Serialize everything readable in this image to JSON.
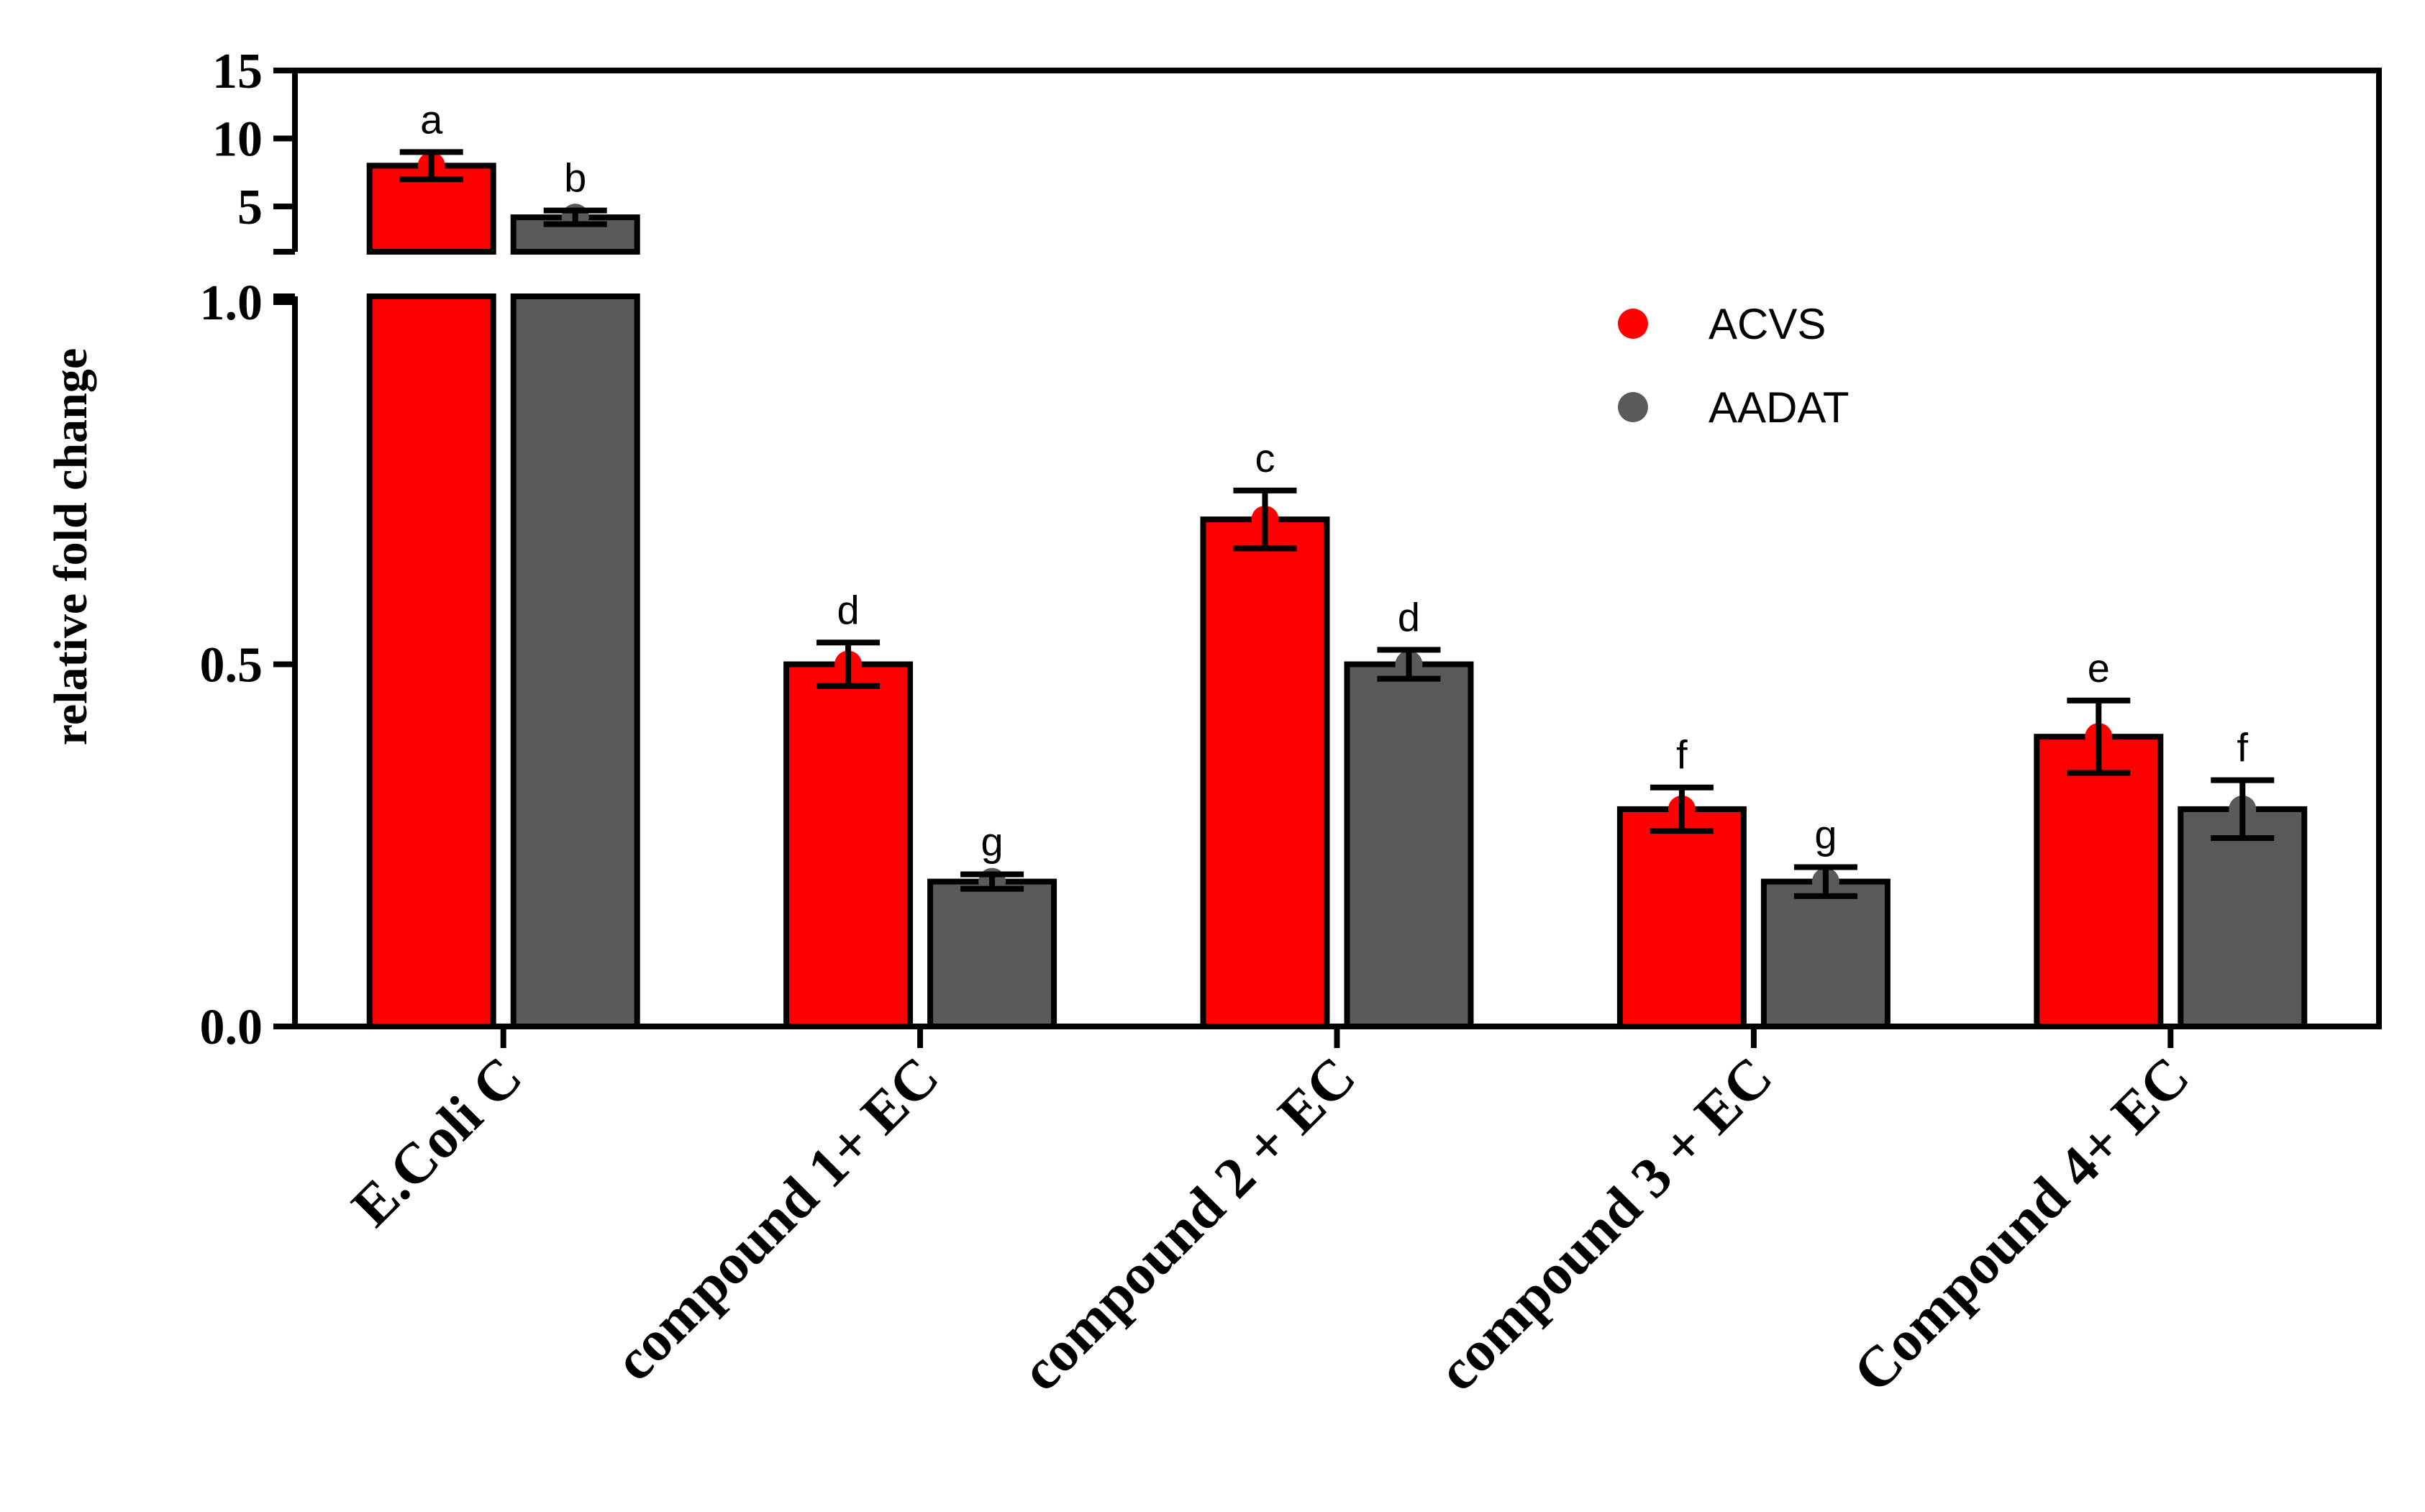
{
  "chart_data": {
    "type": "bar",
    "ylabel": "relative fold change",
    "categories": [
      "E.Coli C",
      "compound 1+ EC",
      "compound 2 + EC",
      "compound 3 + EC",
      "Compound 4+ EC"
    ],
    "series": [
      {
        "name": "ACVS",
        "color": "#ff0000",
        "values": [
          8.0,
          0.5,
          0.7,
          0.3,
          0.4
        ],
        "errors": [
          1.0,
          0.03,
          0.04,
          0.03,
          0.05
        ],
        "significance": [
          "a",
          "d",
          "c",
          "f",
          "e"
        ]
      },
      {
        "name": "AADAT",
        "color": "#5a5a5a",
        "values": [
          4.2,
          0.2,
          0.5,
          0.2,
          0.3
        ],
        "errors": [
          0.5,
          0.01,
          0.02,
          0.02,
          0.04
        ],
        "significance": [
          "b",
          "g",
          "d",
          "g",
          "f"
        ]
      }
    ],
    "axis_segments": [
      {
        "range": [
          0,
          1.0
        ],
        "ticks": [
          "0.0",
          "0.5",
          "1.0"
        ],
        "tick_values": [
          0,
          0.5,
          1.0
        ]
      },
      {
        "range": [
          1.0,
          15
        ],
        "ticks": [
          "5",
          "10",
          "15"
        ],
        "tick_values": [
          5,
          10,
          15
        ]
      }
    ],
    "legend": {
      "placement": "top-right",
      "marker": "circle"
    }
  }
}
